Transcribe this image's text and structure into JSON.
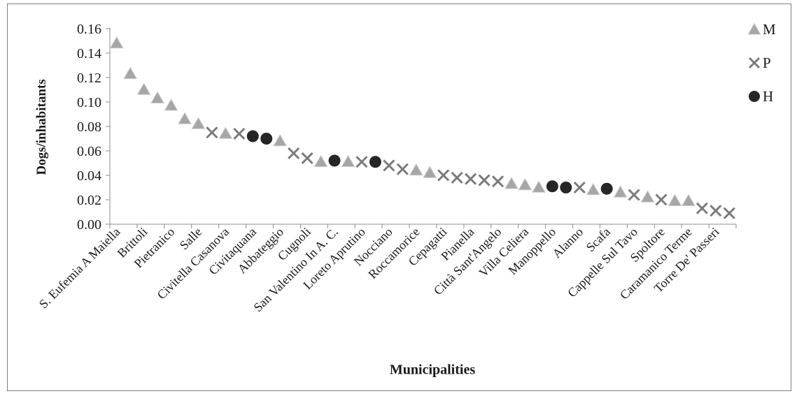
{
  "chart_data": {
    "type": "scatter",
    "xlabel": "Municipalities",
    "ylabel": "Dogs/inhabitants",
    "ylim": [
      0,
      0.16
    ],
    "yticks": [
      "0.00",
      "0.02",
      "0.04",
      "0.06",
      "0.08",
      "0.10",
      "0.12",
      "0.14",
      "0.16"
    ],
    "grid": false,
    "legend_position": "top-right",
    "legend": [
      {
        "key": "M",
        "label": "M",
        "marker": "triangle",
        "color": "#a6a6a6"
      },
      {
        "key": "P",
        "label": "P",
        "marker": "x",
        "color": "#7a7a7a"
      },
      {
        "key": "H",
        "label": "H",
        "marker": "circle",
        "color": "#262626"
      }
    ],
    "category_labels": [
      "S. Eufemia A Maiella",
      "Brittoli",
      "Pietranico",
      "Salle",
      "Civitella Casanova",
      "Civitaquana",
      "Abbateggio",
      "Cugnoli",
      "San Valentino In A. C.",
      "Loreto Aprutino",
      "Nocciano",
      "Roccamorice",
      "Cepagatti",
      "Pianella",
      "Città Sant'Angelo",
      "Villa Celiera",
      "Manoppello",
      "Alanno",
      "Scafa",
      "Cappelle Sul Tavo",
      "Spoltore",
      "Caramanico Terme",
      "Torre De' Passeri"
    ],
    "label_every": 2,
    "points": [
      {
        "type": "M",
        "y": 0.148
      },
      {
        "type": "M",
        "y": 0.123
      },
      {
        "type": "M",
        "y": 0.11
      },
      {
        "type": "M",
        "y": 0.103
      },
      {
        "type": "M",
        "y": 0.097
      },
      {
        "type": "M",
        "y": 0.086
      },
      {
        "type": "M",
        "y": 0.082
      },
      {
        "type": "P",
        "y": 0.075
      },
      {
        "type": "M",
        "y": 0.074
      },
      {
        "type": "P",
        "y": 0.074
      },
      {
        "type": "H",
        "y": 0.072
      },
      {
        "type": "H",
        "y": 0.07
      },
      {
        "type": "M",
        "y": 0.068
      },
      {
        "type": "P",
        "y": 0.058
      },
      {
        "type": "P",
        "y": 0.054
      },
      {
        "type": "M",
        "y": 0.051
      },
      {
        "type": "H",
        "y": 0.052
      },
      {
        "type": "M",
        "y": 0.051
      },
      {
        "type": "P",
        "y": 0.051
      },
      {
        "type": "H",
        "y": 0.051
      },
      {
        "type": "P",
        "y": 0.048
      },
      {
        "type": "P",
        "y": 0.045
      },
      {
        "type": "M",
        "y": 0.044
      },
      {
        "type": "M",
        "y": 0.042
      },
      {
        "type": "P",
        "y": 0.04
      },
      {
        "type": "P",
        "y": 0.038
      },
      {
        "type": "P",
        "y": 0.037
      },
      {
        "type": "P",
        "y": 0.036
      },
      {
        "type": "P",
        "y": 0.035
      },
      {
        "type": "M",
        "y": 0.033
      },
      {
        "type": "M",
        "y": 0.032
      },
      {
        "type": "M",
        "y": 0.03
      },
      {
        "type": "H",
        "y": 0.031
      },
      {
        "type": "H",
        "y": 0.03
      },
      {
        "type": "P",
        "y": 0.03
      },
      {
        "type": "M",
        "y": 0.028
      },
      {
        "type": "H",
        "y": 0.029
      },
      {
        "type": "M",
        "y": 0.026
      },
      {
        "type": "P",
        "y": 0.024
      },
      {
        "type": "M",
        "y": 0.022
      },
      {
        "type": "P",
        "y": 0.02
      },
      {
        "type": "M",
        "y": 0.019
      },
      {
        "type": "M",
        "y": 0.019
      },
      {
        "type": "P",
        "y": 0.013
      },
      {
        "type": "P",
        "y": 0.011
      },
      {
        "type": "P",
        "y": 0.009
      }
    ]
  }
}
